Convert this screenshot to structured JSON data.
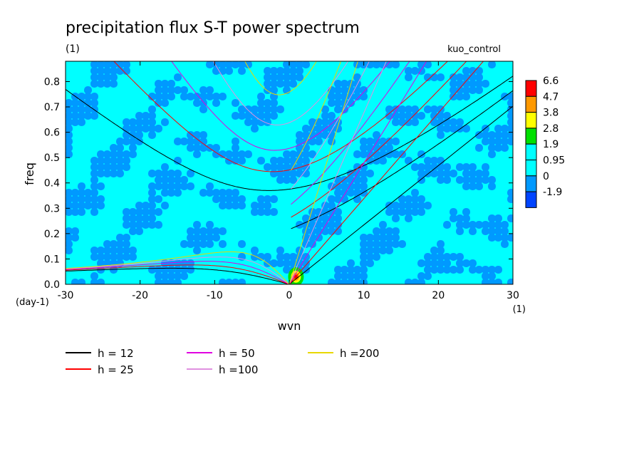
{
  "chart_data": {
    "type": "heatmap",
    "title": "precipitation flux S-T power spectrum",
    "subtitle_left": "(1)",
    "subtitle_right": "kuo_control",
    "xlabel": "wvn",
    "ylabel": "freq",
    "x_unit": "(1)",
    "y_unit": "(day-1)",
    "xlim": [
      -30,
      30
    ],
    "ylim": [
      0,
      0.88
    ],
    "x_ticks": [
      "-30",
      "-20",
      "-10",
      "0",
      "10",
      "20",
      "30"
    ],
    "y_ticks": [
      "0.0",
      "0.1",
      "0.2",
      "0.3",
      "0.4",
      "0.5",
      "0.6",
      "0.7",
      "0.8"
    ],
    "colorbar": {
      "labels": [
        "6.6",
        "4.7",
        "3.8",
        "2.8",
        "1.9",
        "0.95",
        "0",
        "-1.9"
      ],
      "colors": [
        "#ff0000",
        "#ff9900",
        "#ffff00",
        "#00e000",
        "#00ffff",
        "#00ffff",
        "#0099ff",
        "#0044ff"
      ]
    },
    "field_colors": {
      "low": "#0099ff",
      "mid": "#00ffff",
      "peak": [
        "#00e000",
        "#ffff00",
        "#ff9900",
        "#ff0000"
      ]
    },
    "dispersion_curves": [
      {
        "name": "h = 12",
        "h": 12,
        "color": "#000000"
      },
      {
        "name": "h = 25",
        "h": 25,
        "color": "#ff0000"
      },
      {
        "name": "h = 50",
        "h": 50,
        "color": "#e000e0"
      },
      {
        "name": "h =100",
        "h": 100,
        "color": "#e090e0"
      },
      {
        "name": "h =200",
        "h": 200,
        "color": "#e8d800"
      }
    ],
    "legend_placement": "bottom"
  }
}
